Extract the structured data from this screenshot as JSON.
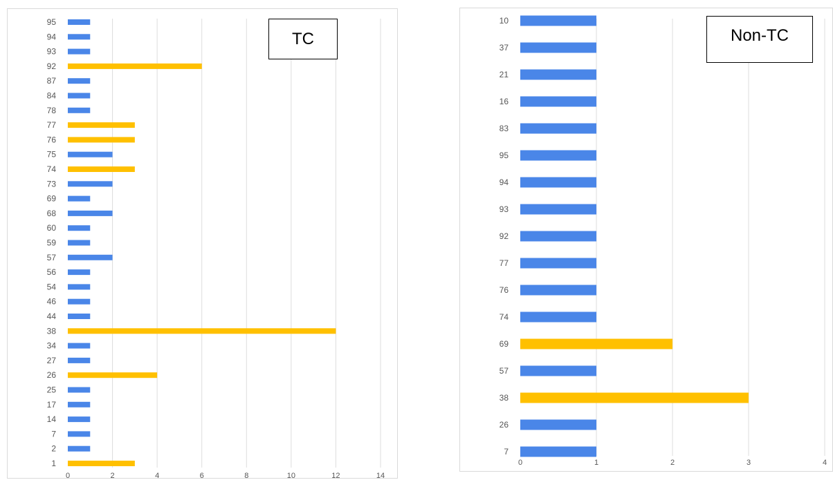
{
  "colors": {
    "default_bar": "#4a86e8",
    "highlight_bar": "#ffc000",
    "grid": "#dddddd",
    "label": "#555555"
  },
  "chart_data": [
    {
      "type": "bar",
      "orientation": "horizontal",
      "title": "TC",
      "categories": [
        "95",
        "94",
        "93",
        "92",
        "87",
        "84",
        "78",
        "77",
        "76",
        "75",
        "74",
        "73",
        "69",
        "68",
        "60",
        "59",
        "57",
        "56",
        "54",
        "46",
        "44",
        "38",
        "34",
        "27",
        "26",
        "25",
        "17",
        "14",
        "7",
        "2",
        "1"
      ],
      "values": [
        1,
        1,
        1,
        6,
        1,
        1,
        1,
        3,
        3,
        2,
        3,
        2,
        1,
        2,
        1,
        1,
        2,
        1,
        1,
        1,
        1,
        12,
        1,
        1,
        4,
        1,
        1,
        1,
        1,
        1,
        3
      ],
      "highlighted": [
        "92",
        "77",
        "76",
        "74",
        "38",
        "26",
        "1"
      ],
      "xlim": [
        0,
        14
      ],
      "xticks": [
        "0",
        "2",
        "4",
        "6",
        "8",
        "10",
        "12",
        "14"
      ],
      "grid": true,
      "legend": "none"
    },
    {
      "type": "bar",
      "orientation": "horizontal",
      "title": "Non-TC",
      "categories": [
        "10",
        "37",
        "21",
        "16",
        "83",
        "95",
        "94",
        "93",
        "92",
        "77",
        "76",
        "74",
        "69",
        "57",
        "38",
        "26",
        "7"
      ],
      "values": [
        1,
        1,
        1,
        1,
        1,
        1,
        1,
        1,
        1,
        1,
        1,
        1,
        2,
        1,
        3,
        1,
        1
      ],
      "highlighted": [
        "69",
        "38"
      ],
      "xlim": [
        0,
        4
      ],
      "xticks": [
        "0",
        "1",
        "2",
        "3",
        "4"
      ],
      "grid": true,
      "legend": "none"
    }
  ]
}
